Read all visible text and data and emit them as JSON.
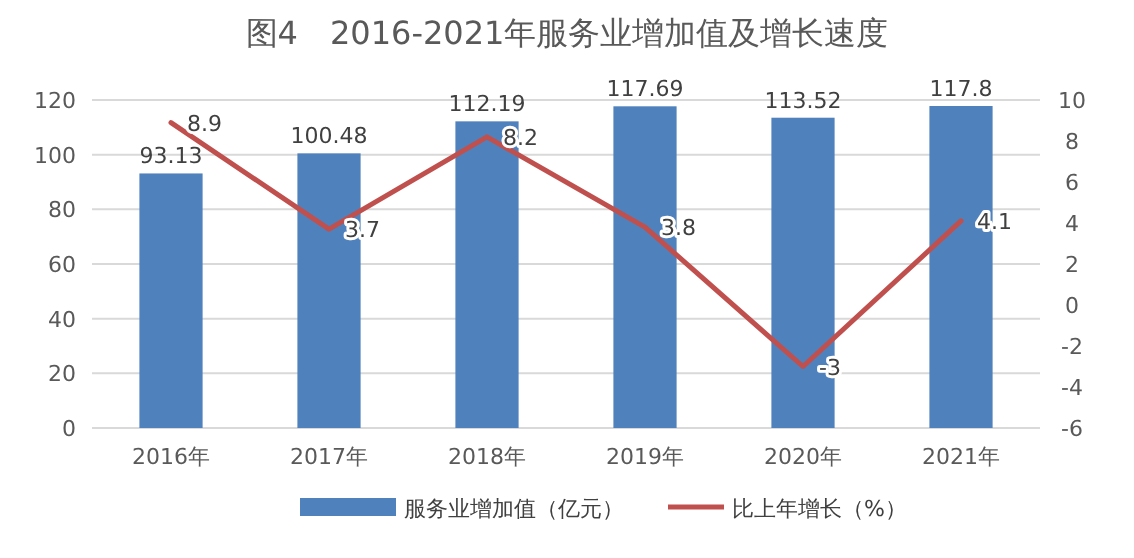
{
  "chart_data": {
    "type": "bar",
    "title": "图4　2016-2021年服务业增加值及增长速度",
    "categories": [
      "2016年",
      "2017年",
      "2018年",
      "2019年",
      "2020年",
      "2021年"
    ],
    "series": [
      {
        "name": "服务业增加值（亿元）",
        "color": "#4f81bd",
        "values": [
          93.13,
          100.48,
          112.19,
          117.69,
          113.52,
          117.8
        ]
      },
      {
        "name": "比上年增长（%）",
        "type": "line",
        "axis": "y2",
        "color": "#c0504d",
        "values": [
          8.9,
          3.7,
          8.2,
          3.8,
          -3,
          4.1
        ]
      }
    ],
    "ylim": [
      0,
      120
    ],
    "yticks": [
      0,
      20,
      40,
      60,
      80,
      100,
      120
    ],
    "y2lim": [
      -6,
      10
    ],
    "y2ticks": [
      -6,
      -4,
      -2,
      0,
      2,
      4,
      6,
      8,
      10
    ],
    "grid": "y",
    "legend": "bottom",
    "data_labels": true
  }
}
